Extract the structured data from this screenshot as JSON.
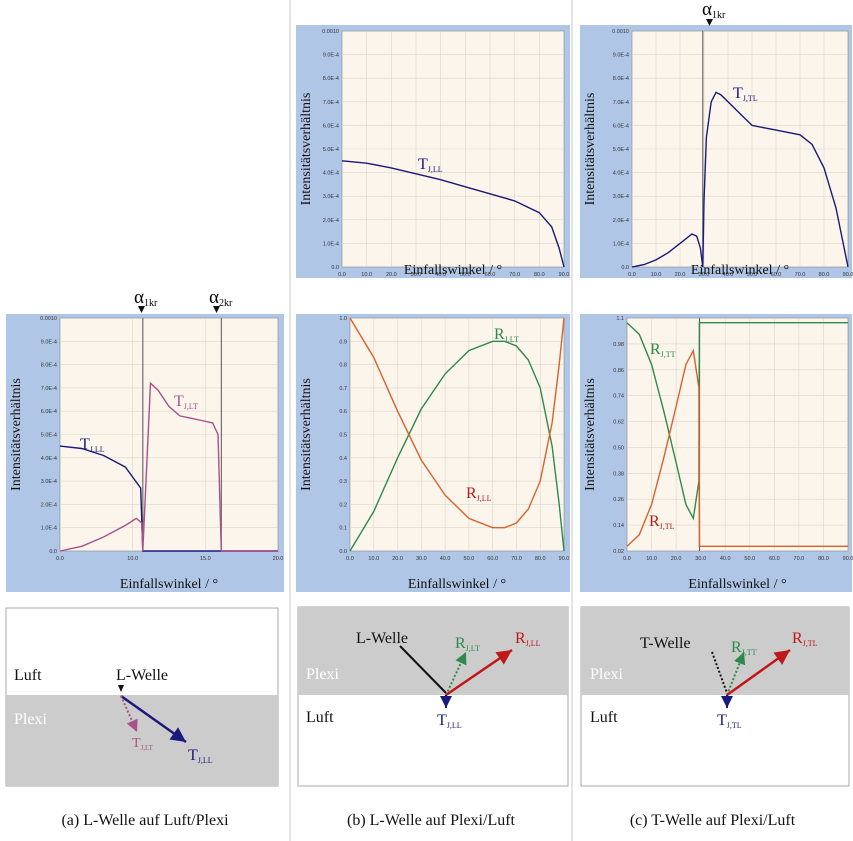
{
  "colors": {
    "panel_bg": "#b0c6e6",
    "plot_bg": "#fbf5ec",
    "grid": "#ddd6c8",
    "navy": "#1a1a7a",
    "pink": "#a8528a",
    "green": "#2e8a4a",
    "orange": "#d8622c",
    "red": "#c01818",
    "black": "#111111",
    "plexi": "#cccccc",
    "luft": "#ffffff"
  },
  "common": {
    "y_label": "Intensitätsverhältnis",
    "x_label": "Einfallswinkel / °"
  },
  "markers": {
    "a1kr": "α",
    "a1kr_sub": "1kr",
    "a2kr": "α",
    "a2kr_sub": "2kr"
  },
  "chart_data": [
    {
      "id": "a",
      "type": "line",
      "xlim": [
        0,
        20
      ],
      "ylim": [
        0,
        0.001
      ],
      "xticks": [
        "0.0",
        "10.0",
        "15.0",
        "20.0"
      ],
      "yticks": [
        "0.0",
        "1.0E-4",
        "2.0E-4",
        "3.0E-4",
        "4.0E-4",
        "5.0E-4",
        "6.0E-4",
        "7.0E-4",
        "8.0E-4",
        "9.0E-4",
        "0.0010"
      ],
      "vlines": [
        7.6,
        14.8
      ],
      "series": [
        {
          "name": "T_J,LL",
          "color": "navy",
          "x": [
            0,
            2,
            4,
            6,
            7.4,
            7.6,
            20
          ],
          "y": [
            0.00045,
            0.00044,
            0.00041,
            0.00036,
            0.00027,
            0,
            0
          ]
        },
        {
          "name": "T_J,LT",
          "color": "pink",
          "x": [
            0,
            2,
            4,
            6,
            7,
            7.5,
            7.6,
            8.3,
            9,
            10,
            11,
            12,
            13,
            14,
            14.5,
            14.8,
            20
          ],
          "y": [
            0,
            2e-05,
            6e-05,
            0.00011,
            0.00014,
            0.00012,
            0,
            0.00072,
            0.00069,
            0.00062,
            0.00058,
            0.00057,
            0.00056,
            0.00055,
            0.0005,
            0,
            0
          ]
        }
      ]
    },
    {
      "id": "b1",
      "type": "line",
      "xlim": [
        0,
        90
      ],
      "ylim": [
        0,
        0.001
      ],
      "xticks": [
        "0.0",
        "10.0",
        "20.0",
        "30.0",
        "40.0",
        "50.0",
        "60.0",
        "70.0",
        "80.0",
        "90.0"
      ],
      "yticks": [
        "0.0",
        "1.0E-4",
        "2.0E-4",
        "3.0E-4",
        "4.0E-4",
        "5.0E-4",
        "6.0E-4",
        "7.0E-4",
        "8.0E-4",
        "9.0E-4",
        "0.0010"
      ],
      "vlines": [],
      "series": [
        {
          "name": "T_J,LL",
          "color": "navy",
          "x": [
            0,
            10,
            20,
            30,
            40,
            50,
            60,
            70,
            80,
            85,
            88,
            90
          ],
          "y": [
            0.00045,
            0.00044,
            0.00042,
            0.000395,
            0.00037,
            0.00034,
            0.00031,
            0.00028,
            0.00023,
            0.00017,
            8e-05,
            0
          ]
        }
      ]
    },
    {
      "id": "b2",
      "type": "line",
      "xlim": [
        0,
        90
      ],
      "ylim": [
        0,
        1
      ],
      "xticks": [
        "0.0",
        "10.0",
        "20.0",
        "30.0",
        "40.0",
        "50.0",
        "60.0",
        "70.0",
        "80.0",
        "90.0"
      ],
      "yticks": [
        "0.0",
        "0.1",
        "0.2",
        "0.3",
        "0.4",
        "0.5",
        "0.6",
        "0.7",
        "0.8",
        "0.9",
        "1.0"
      ],
      "vlines": [],
      "series": [
        {
          "name": "R_J,LT",
          "color": "green",
          "x": [
            0,
            10,
            20,
            30,
            40,
            50,
            60,
            65,
            70,
            75,
            80,
            85,
            88,
            90
          ],
          "y": [
            0,
            0.17,
            0.4,
            0.61,
            0.76,
            0.86,
            0.9,
            0.9,
            0.88,
            0.82,
            0.7,
            0.45,
            0.2,
            0
          ]
        },
        {
          "name": "R_J,LL",
          "color": "orange",
          "x": [
            0,
            10,
            20,
            30,
            40,
            50,
            60,
            65,
            70,
            75,
            80,
            85,
            88,
            90
          ],
          "y": [
            1,
            0.83,
            0.6,
            0.39,
            0.24,
            0.14,
            0.1,
            0.1,
            0.12,
            0.18,
            0.3,
            0.55,
            0.8,
            1
          ]
        }
      ]
    },
    {
      "id": "c1",
      "type": "line",
      "xlim": [
        0,
        90
      ],
      "ylim": [
        0,
        0.001
      ],
      "xticks": [
        "0.0",
        "10.0",
        "20.0",
        "30.0",
        "40.0",
        "50.0",
        "60.0",
        "70.0",
        "80.0",
        "90.0"
      ],
      "yticks": [
        "0.0",
        "1.0E-4",
        "2.0E-4",
        "3.0E-4",
        "4.0E-4",
        "5.0E-4",
        "6.0E-4",
        "7.0E-4",
        "8.0E-4",
        "9.0E-4",
        "0.0010"
      ],
      "vlines": [
        29.5
      ],
      "series": [
        {
          "name": "T_J,TL",
          "color": "navy",
          "x": [
            0,
            5,
            10,
            15,
            20,
            25,
            27,
            28.5,
            29.5,
            30,
            31,
            33,
            35,
            37,
            40,
            45,
            50,
            60,
            70,
            75,
            80,
            85,
            90
          ],
          "y": [
            0,
            1e-05,
            3e-05,
            6e-05,
            0.0001,
            0.00014,
            0.00013,
            8e-05,
            0,
            0.00028,
            0.00055,
            0.0007,
            0.00074,
            0.00073,
            0.0007,
            0.00065,
            0.0006,
            0.00058,
            0.00056,
            0.00052,
            0.00042,
            0.00025,
            0
          ]
        }
      ]
    },
    {
      "id": "c2",
      "type": "line",
      "xlim": [
        0,
        90
      ],
      "ylim": [
        0,
        1
      ],
      "xticks": [
        "0.0",
        "10.0",
        "20.0",
        "30.0",
        "40.0",
        "50.0",
        "60.0",
        "70.0",
        "80.0",
        "90.0"
      ],
      "yticks": [
        "0.02",
        "0.14",
        "0.26",
        "0.38",
        "0.50",
        "0.62",
        "0.74",
        "0.86",
        "0.98",
        "1.1"
      ],
      "vlines": [
        29.5
      ],
      "series": [
        {
          "name": "R_J,TT",
          "color": "green",
          "x": [
            0,
            5,
            10,
            15,
            20,
            24,
            27,
            29.3,
            29.5,
            90
          ],
          "y": [
            0.98,
            0.93,
            0.8,
            0.6,
            0.38,
            0.2,
            0.14,
            0.3,
            0.98,
            0.98
          ]
        },
        {
          "name": "R_J,TL",
          "color": "orange",
          "x": [
            0,
            5,
            10,
            15,
            20,
            24,
            27,
            29.3,
            29.5,
            90
          ],
          "y": [
            0.02,
            0.07,
            0.2,
            0.4,
            0.62,
            0.8,
            0.86,
            0.7,
            0.02,
            0.02
          ]
        }
      ]
    }
  ],
  "labels": {
    "a_TLL": "T",
    "a_TLL_sub": "J,LL",
    "a_TLT": "T",
    "a_TLT_sub": "J,LT",
    "b1_TLL": "T",
    "b1_TLL_sub": "J,LL",
    "b2_RLT": "R",
    "b2_RLT_sub": "J,LT",
    "b2_RLL": "R",
    "b2_RLL_sub": "J,LL",
    "c1_TTL": "T",
    "c1_TTL_sub": "J,TL",
    "c2_RTT": "R",
    "c2_RTT_sub": "J,TT",
    "c2_RTL": "R",
    "c2_RTL_sub": "J,TL"
  },
  "diagrams": {
    "a": {
      "top_medium": "Luft",
      "bottom_medium": "Plexi",
      "wave": "L-Welle",
      "t1": "T",
      "t1_sub": "J,LT",
      "t2": "T",
      "t2_sub": "J,LL"
    },
    "b": {
      "top_medium": "Plexi",
      "bottom_medium": "Luft",
      "wave": "L-Welle",
      "r1": "R",
      "r1_sub": "J,LT",
      "r2": "R",
      "r2_sub": "J,LL",
      "t": "T",
      "t_sub": "J,LL"
    },
    "c": {
      "top_medium": "Plexi",
      "bottom_medium": "Luft",
      "wave": "T-Welle",
      "r1": "R",
      "r1_sub": "J,TT",
      "r2": "R",
      "r2_sub": "J,TL",
      "t": "T",
      "t_sub": "J,TL"
    }
  },
  "captions": {
    "a": "(a) L-Welle auf Luft/Plexi",
    "b": "(b) L-Welle auf Plexi/Luft",
    "c": "(c) T-Welle auf Plexi/Luft"
  }
}
